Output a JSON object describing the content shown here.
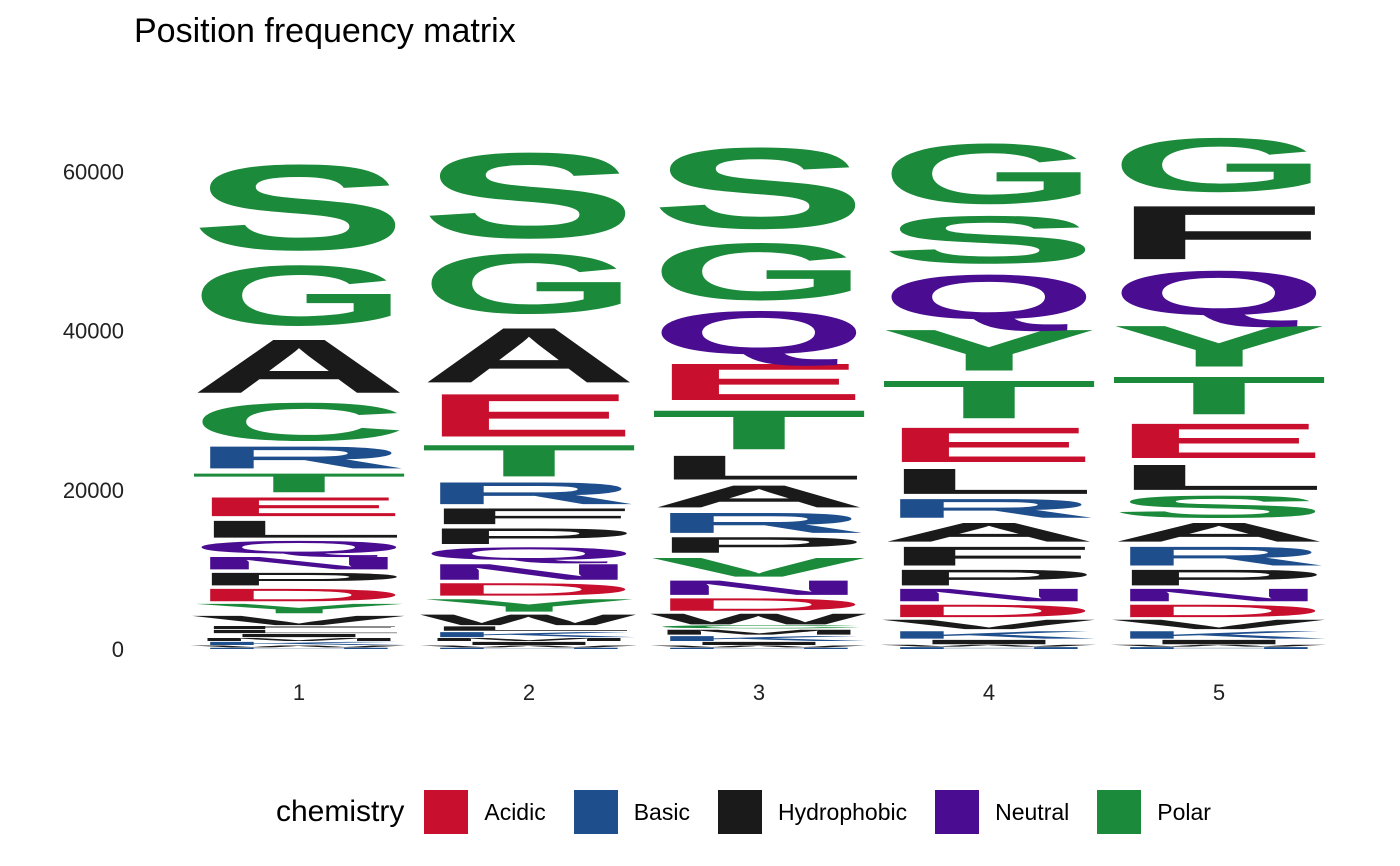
{
  "chart_data": {
    "type": "sequence-logo",
    "title": "Position frequency matrix",
    "xlabel": "",
    "ylabel": "",
    "ylim": [
      0,
      70000
    ],
    "y_ticks": [
      "0",
      "20000",
      "40000",
      "60000"
    ],
    "y_tick_values": [
      0,
      20000,
      40000,
      60000
    ],
    "grid": false,
    "legend_position": "bottom",
    "legend_title": "chemistry",
    "legend": [
      {
        "name": "Acidic",
        "color": "#C8102E"
      },
      {
        "name": "Basic",
        "color": "#1F4E8C"
      },
      {
        "name": "Hydrophobic",
        "color": "#1A1A1A"
      },
      {
        "name": "Neutral",
        "color": "#4A0D91"
      },
      {
        "name": "Polar",
        "color": "#1B8A3A"
      }
    ],
    "positions": [
      {
        "label": "1",
        "letters": [
          {
            "letter": "H",
            "count": 200,
            "group": "Basic"
          },
          {
            "letter": "W",
            "count": 300,
            "group": "Hydrophobic"
          },
          {
            "letter": "K",
            "count": 500,
            "group": "Basic"
          },
          {
            "letter": "M",
            "count": 500,
            "group": "Hydrophobic"
          },
          {
            "letter": "I",
            "count": 500,
            "group": "Hydrophobic"
          },
          {
            "letter": "L",
            "count": 500,
            "group": "Hydrophobic"
          },
          {
            "letter": "F",
            "count": 500,
            "group": "Hydrophobic"
          },
          {
            "letter": "V",
            "count": 1500,
            "group": "Hydrophobic"
          },
          {
            "letter": "Y",
            "count": 1500,
            "group": "Polar"
          },
          {
            "letter": "D",
            "count": 2000,
            "group": "Acidic"
          },
          {
            "letter": "P",
            "count": 2000,
            "group": "Hydrophobic"
          },
          {
            "letter": "N",
            "count": 2000,
            "group": "Neutral"
          },
          {
            "letter": "Q",
            "count": 2000,
            "group": "Neutral"
          },
          {
            "letter": "L",
            "count": 2700,
            "group": "Hydrophobic"
          },
          {
            "letter": "E",
            "count": 3000,
            "group": "Acidic"
          },
          {
            "letter": "T",
            "count": 3000,
            "group": "Polar"
          },
          {
            "letter": "R",
            "count": 3500,
            "group": "Basic"
          },
          {
            "letter": "C",
            "count": 6000,
            "group": "Polar"
          },
          {
            "letter": "A",
            "count": 8500,
            "group": "Hydrophobic"
          },
          {
            "letter": "G",
            "count": 9500,
            "group": "Polar"
          },
          {
            "letter": "S",
            "count": 13500,
            "group": "Polar"
          }
        ]
      },
      {
        "label": "2",
        "letters": [
          {
            "letter": "H",
            "count": 200,
            "group": "Basic"
          },
          {
            "letter": "W",
            "count": 300,
            "group": "Hydrophobic"
          },
          {
            "letter": "I",
            "count": 500,
            "group": "Hydrophobic"
          },
          {
            "letter": "M",
            "count": 500,
            "group": "Hydrophobic"
          },
          {
            "letter": "K",
            "count": 800,
            "group": "Basic"
          },
          {
            "letter": "L",
            "count": 700,
            "group": "Hydrophobic"
          },
          {
            "letter": "W",
            "count": 1700,
            "group": "Hydrophobic"
          },
          {
            "letter": "Y",
            "count": 2000,
            "group": "Polar"
          },
          {
            "letter": "D",
            "count": 2000,
            "group": "Acidic"
          },
          {
            "letter": "N",
            "count": 2500,
            "group": "Neutral"
          },
          {
            "letter": "Q",
            "count": 2000,
            "group": "Neutral"
          },
          {
            "letter": "P",
            "count": 2500,
            "group": "Hydrophobic"
          },
          {
            "letter": "F",
            "count": 2500,
            "group": "Hydrophobic"
          },
          {
            "letter": "R",
            "count": 3500,
            "group": "Basic"
          },
          {
            "letter": "T",
            "count": 5000,
            "group": "Polar"
          },
          {
            "letter": "E",
            "count": 6800,
            "group": "Acidic"
          },
          {
            "letter": "A",
            "count": 8700,
            "group": "Hydrophobic"
          },
          {
            "letter": "G",
            "count": 9500,
            "group": "Polar"
          },
          {
            "letter": "S",
            "count": 13500,
            "group": "Polar"
          }
        ]
      },
      {
        "label": "3",
        "letters": [
          {
            "letter": "H",
            "count": 200,
            "group": "Basic"
          },
          {
            "letter": "W",
            "count": 300,
            "group": "Hydrophobic"
          },
          {
            "letter": "I",
            "count": 500,
            "group": "Hydrophobic"
          },
          {
            "letter": "K",
            "count": 800,
            "group": "Basic"
          },
          {
            "letter": "M",
            "count": 800,
            "group": "Hydrophobic"
          },
          {
            "letter": "C",
            "count": 500,
            "group": "Polar"
          },
          {
            "letter": "W",
            "count": 1700,
            "group": "Hydrophobic"
          },
          {
            "letter": "D",
            "count": 2000,
            "group": "Acidic"
          },
          {
            "letter": "N",
            "count": 2300,
            "group": "Neutral"
          },
          {
            "letter": "V",
            "count": 3000,
            "group": "Polar"
          },
          {
            "letter": "P",
            "count": 2500,
            "group": "Hydrophobic"
          },
          {
            "letter": "R",
            "count": 3200,
            "group": "Basic"
          },
          {
            "letter": "A",
            "count": 3500,
            "group": "Hydrophobic"
          },
          {
            "letter": "L",
            "count": 3800,
            "group": "Hydrophobic"
          },
          {
            "letter": "T",
            "count": 6200,
            "group": "Polar"
          },
          {
            "letter": "E",
            "count": 5800,
            "group": "Acidic"
          },
          {
            "letter": "Q",
            "count": 6800,
            "group": "Neutral"
          },
          {
            "letter": "G",
            "count": 9000,
            "group": "Polar"
          },
          {
            "letter": "S",
            "count": 12800,
            "group": "Polar"
          }
        ]
      },
      {
        "label": "4",
        "letters": [
          {
            "letter": "H",
            "count": 300,
            "group": "Basic"
          },
          {
            "letter": "W",
            "count": 300,
            "group": "Hydrophobic"
          },
          {
            "letter": "I",
            "count": 700,
            "group": "Hydrophobic"
          },
          {
            "letter": "K",
            "count": 1200,
            "group": "Basic"
          },
          {
            "letter": "V",
            "count": 1500,
            "group": "Hydrophobic"
          },
          {
            "letter": "D",
            "count": 2000,
            "group": "Acidic"
          },
          {
            "letter": "N",
            "count": 2000,
            "group": "Neutral"
          },
          {
            "letter": "P",
            "count": 2500,
            "group": "Hydrophobic"
          },
          {
            "letter": "F",
            "count": 3000,
            "group": "Hydrophobic"
          },
          {
            "letter": "A",
            "count": 3000,
            "group": "Hydrophobic"
          },
          {
            "letter": "R",
            "count": 3000,
            "group": "Basic"
          },
          {
            "letter": "L",
            "count": 4000,
            "group": "Hydrophobic"
          },
          {
            "letter": "E",
            "count": 5500,
            "group": "Acidic"
          },
          {
            "letter": "T",
            "count": 6000,
            "group": "Polar"
          },
          {
            "letter": "Y",
            "count": 6500,
            "group": "Polar"
          },
          {
            "letter": "Q",
            "count": 7000,
            "group": "Neutral"
          },
          {
            "letter": "S",
            "count": 7500,
            "group": "Polar"
          },
          {
            "letter": "G",
            "count": 9500,
            "group": "Polar"
          }
        ]
      },
      {
        "label": "5",
        "letters": [
          {
            "letter": "H",
            "count": 300,
            "group": "Basic"
          },
          {
            "letter": "W",
            "count": 300,
            "group": "Hydrophobic"
          },
          {
            "letter": "I",
            "count": 700,
            "group": "Hydrophobic"
          },
          {
            "letter": "K",
            "count": 1200,
            "group": "Basic"
          },
          {
            "letter": "V",
            "count": 1500,
            "group": "Hydrophobic"
          },
          {
            "letter": "D",
            "count": 2000,
            "group": "Acidic"
          },
          {
            "letter": "N",
            "count": 2000,
            "group": "Neutral"
          },
          {
            "letter": "P",
            "count": 2500,
            "group": "Hydrophobic"
          },
          {
            "letter": "R",
            "count": 3000,
            "group": "Basic"
          },
          {
            "letter": "A",
            "count": 3000,
            "group": "Hydrophobic"
          },
          {
            "letter": "S",
            "count": 3500,
            "group": "Polar"
          },
          {
            "letter": "L",
            "count": 4000,
            "group": "Hydrophobic"
          },
          {
            "letter": "E",
            "count": 5500,
            "group": "Acidic"
          },
          {
            "letter": "T",
            "count": 6000,
            "group": "Polar"
          },
          {
            "letter": "Y",
            "count": 6500,
            "group": "Polar"
          },
          {
            "letter": "Q",
            "count": 7000,
            "group": "Neutral"
          },
          {
            "letter": "F",
            "count": 8500,
            "group": "Hydrophobic"
          },
          {
            "letter": "G",
            "count": 8500,
            "group": "Polar"
          }
        ]
      }
    ]
  }
}
